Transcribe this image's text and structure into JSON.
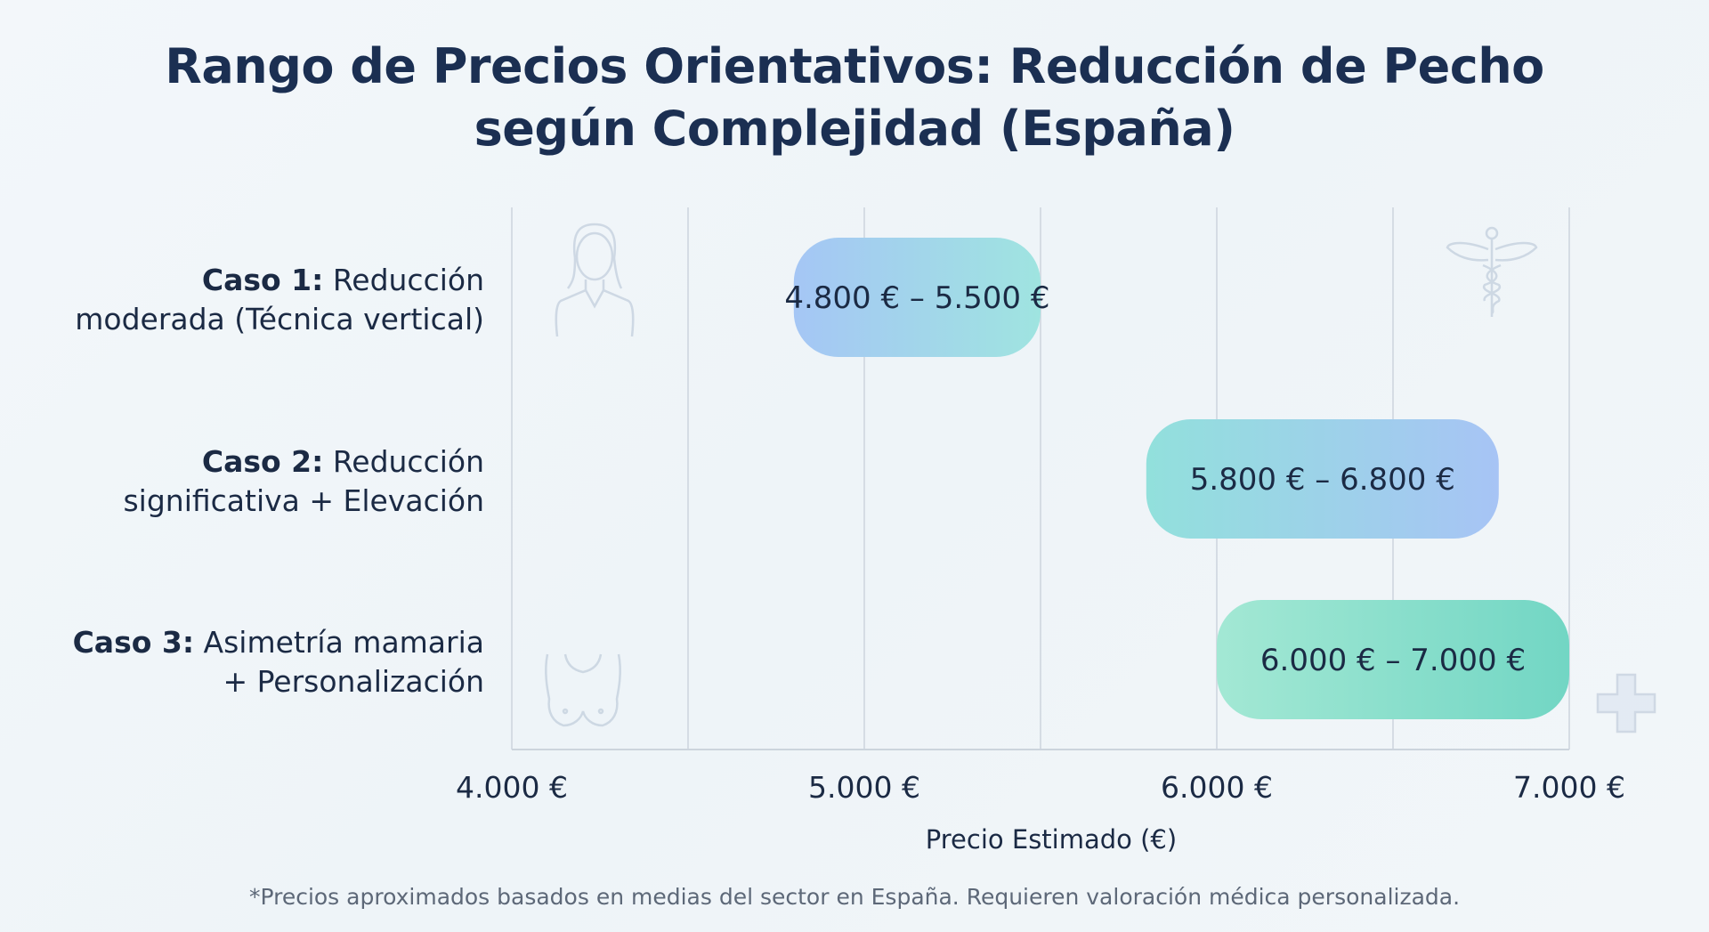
{
  "title": {
    "line1": "Rango de Precios Orientativos: Reducción de Pecho",
    "line2": "según Complejidad (España)"
  },
  "footnote": "*Precios aproximados basados en medias del sector en España. Requieren valoración médica personalizada.",
  "icons": [
    "woman-icon",
    "caduceus-icon",
    "breast-icon",
    "medical-cross-icon"
  ],
  "chart_data": {
    "type": "bar",
    "orientation": "horizontal-range",
    "title": "Rango de Precios Orientativos: Reducción de Pecho según Complejidad (España)",
    "xlabel": "Precio Estimado (€)",
    "xlim": [
      4000,
      7000
    ],
    "xticks": [
      4000,
      5000,
      6000,
      7000
    ],
    "xtick_labels": [
      "4.000 €",
      "5.000 €",
      "6.000 €",
      "7.000 €"
    ],
    "grid_step": 500,
    "grid": true,
    "categories": [
      {
        "bold": "Caso 1:",
        "rest1": " Reducción",
        "line2": "moderada (Técnica vertical)"
      },
      {
        "bold": "Caso 2:",
        "rest1": " Reducción",
        "line2": "significativa + Elevación"
      },
      {
        "bold": "Caso 3:",
        "rest1": " Asimetría mamaria",
        "line2": "+ Personalización"
      }
    ],
    "ranges": [
      {
        "min": 4800,
        "max": 5500,
        "label": "4.800 € – 5.500 €",
        "colors": [
          "#a5c6f5",
          "#9fe4e0"
        ]
      },
      {
        "min": 5800,
        "max": 6800,
        "label": "5.800 € – 6.800 €",
        "colors": [
          "#92e0dc",
          "#a7c4f5"
        ]
      },
      {
        "min": 6000,
        "max": 7000,
        "label": "6.000 € – 7.000 €",
        "colors": [
          "#a3e8d4",
          "#72d6c4"
        ]
      }
    ]
  }
}
